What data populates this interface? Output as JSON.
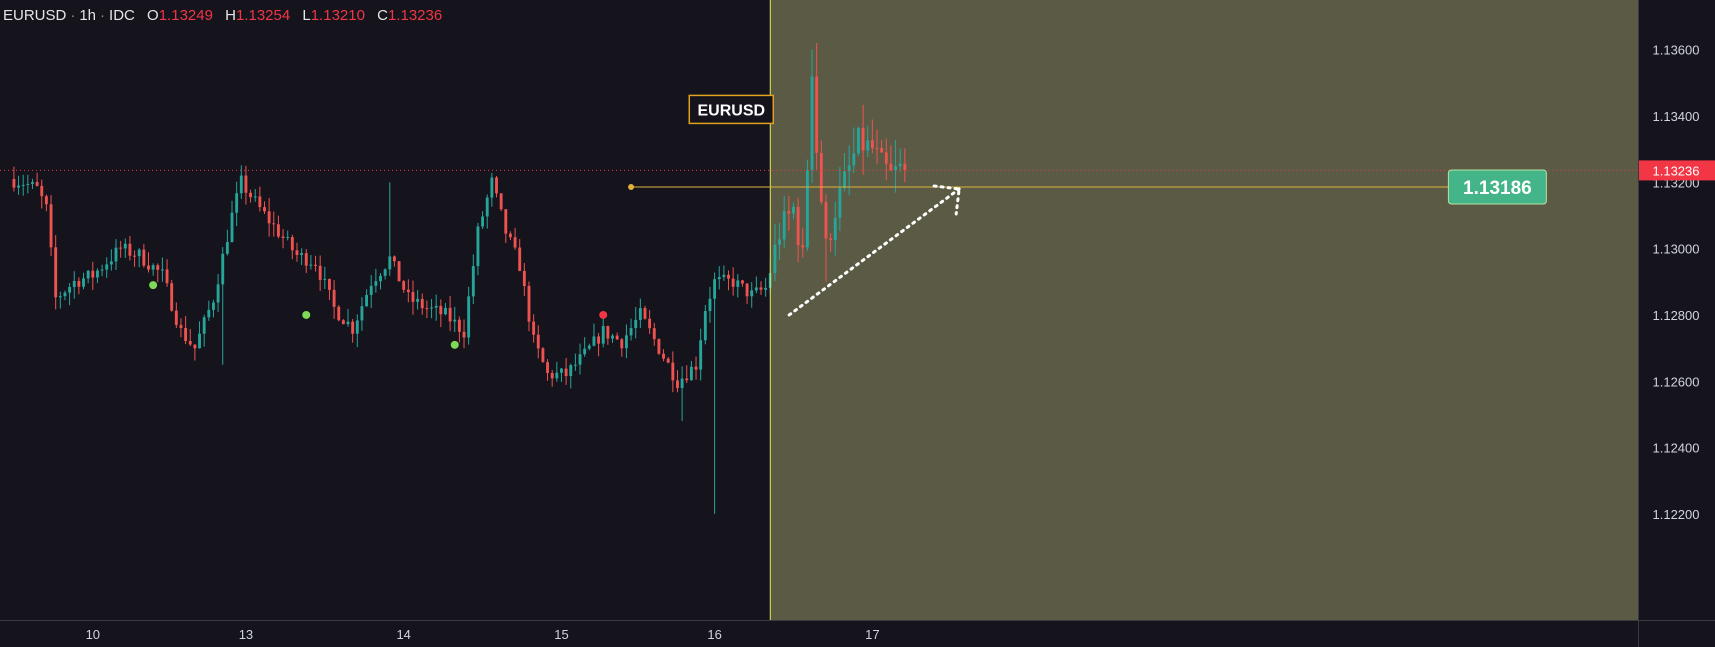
{
  "legend": {
    "symbol": "EURUSD",
    "interval": "1h",
    "source": "IDC",
    "open_label": "O",
    "open": "1.13249",
    "high_label": "H",
    "high": "1.13254",
    "low_label": "L",
    "low": "1.13210",
    "close_label": "C",
    "close": "1.13236"
  },
  "chart_data": {
    "type": "candlestick",
    "symbol_label": "EURUSD",
    "y_ticks": [
      1.122,
      1.124,
      1.126,
      1.128,
      1.13,
      1.132,
      1.134,
      1.136
    ],
    "y_tick_labels": [
      "1.12200",
      "1.12400",
      "1.12600",
      "1.12800",
      "1.13000",
      "1.13200",
      "1.13400",
      "1.13600"
    ],
    "ylim": [
      1.1188,
      1.1375
    ],
    "x_ticks": [
      {
        "label": "10",
        "index": 17
      },
      {
        "label": "13",
        "index": 50
      },
      {
        "label": "14",
        "index": 84
      },
      {
        "label": "15",
        "index": 118
      },
      {
        "label": "16",
        "index": 151
      },
      {
        "label": "17",
        "index": 185
      }
    ],
    "candle_count": 193,
    "visible_range": [
      -3,
      350
    ],
    "last_price": 1.13236,
    "last_price_label": "1.13236",
    "level_price": 1.13186,
    "level_label": "1.13186",
    "level_start_index": 133,
    "level_end_index": 310,
    "session_start_index": 163,
    "key_points": [
      [
        0,
        1.1321
      ],
      [
        3,
        1.132
      ],
      [
        6,
        1.1318
      ],
      [
        8,
        1.1312
      ],
      [
        10,
        1.1285
      ],
      [
        14,
        1.129
      ],
      [
        18,
        1.1292
      ],
      [
        24,
        1.13
      ],
      [
        28,
        1.1298
      ],
      [
        33,
        1.1292
      ],
      [
        37,
        1.1275
      ],
      [
        40,
        1.127
      ],
      [
        44,
        1.1285
      ],
      [
        48,
        1.131
      ],
      [
        50,
        1.132
      ],
      [
        54,
        1.1312
      ],
      [
        58,
        1.1305
      ],
      [
        62,
        1.1298
      ],
      [
        66,
        1.1296
      ],
      [
        70,
        1.1282
      ],
      [
        74,
        1.1276
      ],
      [
        78,
        1.129
      ],
      [
        82,
        1.1297
      ],
      [
        86,
        1.1285
      ],
      [
        90,
        1.1282
      ],
      [
        94,
        1.128
      ],
      [
        98,
        1.1275
      ],
      [
        101,
        1.1305
      ],
      [
        104,
        1.132
      ],
      [
        107,
        1.1305
      ],
      [
        110,
        1.1295
      ],
      [
        113,
        1.1272
      ],
      [
        116,
        1.1262
      ],
      [
        120,
        1.1262
      ],
      [
        124,
        1.1268
      ],
      [
        128,
        1.1275
      ],
      [
        132,
        1.1272
      ],
      [
        136,
        1.128
      ],
      [
        140,
        1.127
      ],
      [
        144,
        1.126
      ],
      [
        148,
        1.1265
      ],
      [
        150,
        1.1282
      ],
      [
        152,
        1.129
      ],
      [
        156,
        1.129
      ],
      [
        160,
        1.1286
      ],
      [
        163,
        1.1288
      ],
      [
        166,
        1.1305
      ],
      [
        169,
        1.1312
      ],
      [
        171,
        1.1297
      ],
      [
        172,
        1.1325
      ],
      [
        173,
        1.1355
      ],
      [
        174,
        1.133
      ],
      [
        176,
        1.13
      ],
      [
        178,
        1.1312
      ],
      [
        180,
        1.132
      ],
      [
        183,
        1.1332
      ],
      [
        186,
        1.133
      ],
      [
        188,
        1.1325
      ],
      [
        190,
        1.1322
      ],
      [
        192,
        1.1324
      ]
    ],
    "spikes": [
      [
        172,
        1.136,
        null
      ],
      [
        173,
        1.1362,
        null
      ],
      [
        151,
        null,
        1.122
      ],
      [
        175,
        null,
        1.129
      ],
      [
        144,
        null,
        1.1248
      ],
      [
        45,
        null,
        1.1265
      ],
      [
        81,
        1.132,
        null
      ]
    ],
    "signal_dots": [
      {
        "index": 30,
        "price": 1.1289,
        "color": "#7ed957"
      },
      {
        "index": 63,
        "price": 1.128,
        "color": "#7ed957"
      },
      {
        "index": 95,
        "price": 1.1271,
        "color": "#7ed957"
      },
      {
        "index": 127,
        "price": 1.128,
        "color": "#f23645"
      }
    ],
    "colors": {
      "up": "#26a69a",
      "down": "#ef5350",
      "background": "#15141d",
      "session_zone": "#5a5a45",
      "session_line": "#e8e85a",
      "level": "#e0b23a",
      "level_badge": "#44b489",
      "last_price": "#f23645",
      "symbol_label_border": "#e0a21e",
      "axis_text": "#d1d4dc",
      "separator": "#3a3a44"
    }
  }
}
